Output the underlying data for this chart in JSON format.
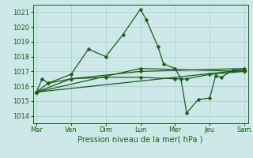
{
  "background_color": "#cde8e8",
  "grid_color": "#aacccc",
  "line_color": "#1a5c1a",
  "marker_color": "#1a5c1a",
  "xlabel": "Pression niveau de la mer( hPa )",
  "ylim": [
    1013.5,
    1021.5
  ],
  "yticks": [
    1014,
    1015,
    1016,
    1017,
    1018,
    1019,
    1020,
    1021
  ],
  "day_labels": [
    "Mar",
    "Ven",
    "Dim",
    "Lun",
    "Mer",
    "Jeu",
    "Sam"
  ],
  "day_positions": [
    0,
    3,
    6,
    9,
    12,
    15,
    18
  ],
  "xlim": [
    -0.3,
    18.3
  ],
  "lines": [
    [
      0.0,
      1015.6,
      0.5,
      1016.5,
      1.0,
      1016.2,
      3.0,
      1016.8,
      4.5,
      1018.5,
      6.0,
      1018.0,
      7.5,
      1019.5,
      9.0,
      1021.2,
      9.5,
      1020.5,
      10.5,
      1018.7,
      11.0,
      1017.5,
      12.0,
      1017.2,
      12.5,
      1016.5,
      13.0,
      1014.2,
      14.0,
      1015.1,
      15.0,
      1015.2,
      15.5,
      1016.7,
      16.0,
      1016.6,
      17.0,
      1017.1,
      18.0,
      1017.1
    ],
    [
      0.0,
      1015.6,
      1.0,
      1016.2,
      3.0,
      1016.5,
      6.0,
      1016.6,
      9.0,
      1016.6,
      12.0,
      1016.5,
      13.0,
      1016.5,
      15.0,
      1016.8,
      18.0,
      1017.0
    ],
    [
      0.0,
      1015.6,
      3.0,
      1016.5,
      9.0,
      1017.0,
      18.0,
      1017.2
    ],
    [
      0.0,
      1015.6,
      9.0,
      1017.2,
      18.0,
      1017.0
    ],
    [
      0.0,
      1015.6,
      18.0,
      1017.1
    ]
  ]
}
